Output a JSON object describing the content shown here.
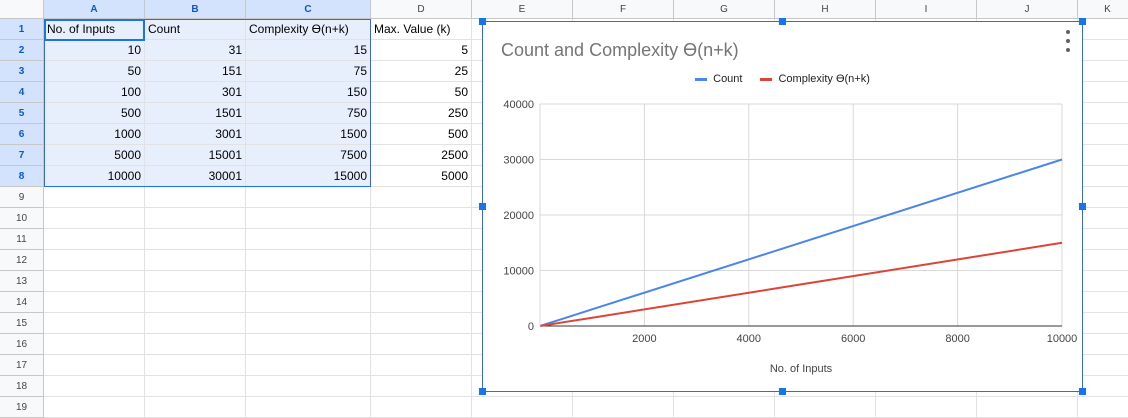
{
  "columns": [
    "A",
    "B",
    "C",
    "D",
    "E",
    "F",
    "G",
    "H",
    "I",
    "J",
    "K"
  ],
  "selected_columns": [
    "A",
    "B",
    "C"
  ],
  "rows": [
    "1",
    "2",
    "3",
    "4",
    "5",
    "6",
    "7",
    "8",
    "9",
    "10",
    "11",
    "12",
    "13",
    "14",
    "15",
    "16",
    "17",
    "18",
    "19"
  ],
  "selected_rows": [
    "1",
    "2",
    "3",
    "4",
    "5",
    "6",
    "7",
    "8"
  ],
  "table": {
    "headers": [
      "No. of Inputs",
      "Count",
      "Complexity ϴ(n+k)",
      "Max. Value (k)"
    ],
    "rows": [
      [
        "10",
        "31",
        "15",
        "5"
      ],
      [
        "50",
        "151",
        "75",
        "25"
      ],
      [
        "100",
        "301",
        "150",
        "50"
      ],
      [
        "500",
        "1501",
        "750",
        "250"
      ],
      [
        "1000",
        "3001",
        "1500",
        "500"
      ],
      [
        "5000",
        "15001",
        "7500",
        "2500"
      ],
      [
        "10000",
        "30001",
        "15000",
        "5000"
      ]
    ]
  },
  "chart_data": {
    "type": "line",
    "title": "Count and Complexity ϴ(n+k)",
    "xlabel": "No. of Inputs",
    "ylabel": "",
    "x": [
      10,
      50,
      100,
      500,
      1000,
      5000,
      10000
    ],
    "series": [
      {
        "name": "Count",
        "color": "#4a86e8",
        "values": [
          31,
          151,
          301,
          1501,
          3001,
          15001,
          30001
        ]
      },
      {
        "name": "Complexity ϴ(n+k)",
        "color": "#db4437",
        "values": [
          15,
          75,
          150,
          750,
          1500,
          7500,
          15000
        ]
      }
    ],
    "xlim": [
      0,
      10000
    ],
    "ylim": [
      0,
      40000
    ],
    "xticks": [
      2000,
      4000,
      6000,
      8000,
      10000
    ],
    "yticks": [
      0,
      10000,
      20000,
      30000,
      40000
    ],
    "grid": true,
    "legend": "top"
  },
  "colors": {
    "selection": "#1a73e8",
    "selection_fill": "#e8effc",
    "header_selected": "#d3e3fd"
  }
}
